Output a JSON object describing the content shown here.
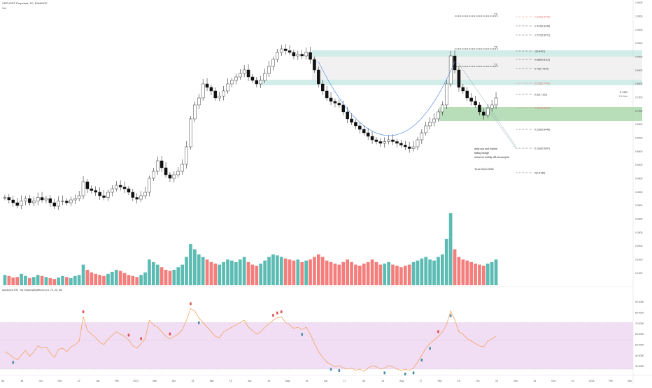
{
  "header": {
    "symbol_line": "XRPUSDT Perpetual, 1D, BINANCE",
    "sub_line": "Vol"
  },
  "rsi_panel": {
    "label": "Advanced RSI · By SeasonalityBitcoin (14, 70, 30, 55)"
  },
  "price_axis_labels": [
    "1.0000",
    "1.0500",
    "1.0000",
    "0.9500",
    "0.9000",
    "0.8500",
    "0.8000",
    "0.7500",
    "0.7000",
    "0.6500",
    "0.6000",
    "0.5500",
    "0.5000",
    "0.4500",
    "0.4000",
    "0.3500",
    "0.3000",
    "0.2500",
    "0.2000",
    "0.1500",
    "0.1000"
  ],
  "rsi_axis_labels": [
    "90.0000",
    "80.0000",
    "70.0000",
    "60.0000",
    "50.0000",
    "40.0000",
    "30.0000"
  ],
  "time_axis_labels": [
    "Ap",
    "Jul",
    "Oct",
    "Nov",
    "22",
    "Jan",
    "Feb",
    "2023",
    "Mar",
    "Apr",
    "15",
    "Mar",
    "15",
    "Apr",
    "16",
    "May",
    "16",
    "Jun",
    "17",
    "Jul",
    "18",
    "Aug",
    "17",
    "Sep",
    "18",
    "Oct",
    "16",
    "Nov",
    "16",
    "Dec",
    "16",
    "2024",
    "Feb",
    "Mar"
  ],
  "fib_levels": [
    {
      "label": "1.618(0.9978)",
      "color": "#e57373"
    },
    {
      "label": "1.414(0.9444)",
      "color": "#333333"
    },
    {
      "label": "1.272(0.9071)",
      "color": "#333333"
    },
    {
      "label": "1(0.8421)",
      "color": "#333333"
    },
    {
      "label": "0.886(0.8119)",
      "color": "#333333"
    },
    {
      "label": "0.79(0.7875)",
      "color": "#333333"
    },
    {
      "label": "0.618(0.7424)",
      "color": "#e57373"
    },
    {
      "label": "0.5(0.7102)",
      "color": "#333333"
    },
    {
      "label": "0.382(0.6822)",
      "color": "#e57373"
    },
    {
      "label": "0.236(0.6448)",
      "color": "#333333"
    },
    {
      "label": "0.118(0.5997)",
      "color": "#333333"
    },
    {
      "label": "0(0.5785)",
      "color": "#333333"
    }
  ],
  "targets": [
    "T3",
    "T2",
    "T1"
  ],
  "annotations": {
    "line1": "daily cup and handle",
    "line2": "falling wedge",
    "line3": "retest on weekly 0B bounceplot",
    "line4": "Yo-lo DCA LONG"
  },
  "price_tag": {
    "value": "0.7402",
    "sub": "17h 04m"
  },
  "colors": {
    "up": "#26a69a",
    "down": "#ef5350",
    "candle": "#111111",
    "band": "#b2dfdb",
    "zone": "#a5d6a7",
    "rsi_band": "#efd9f3",
    "rsi_line": "#f4a460"
  },
  "chart_data": {
    "type": "candlestick",
    "approximate": true,
    "price_range": [
      0.3,
      1.0
    ],
    "rsi_range": [
      30,
      90
    ],
    "rsi_levels": [
      70,
      55,
      30
    ],
    "price_closes": [
      0.455,
      0.448,
      0.44,
      0.432,
      0.445,
      0.452,
      0.44,
      0.445,
      0.455,
      0.448,
      0.452,
      0.44,
      0.43,
      0.445,
      0.445,
      0.44,
      0.448,
      0.452,
      0.46,
      0.5,
      0.48,
      0.475,
      0.47,
      0.46,
      0.455,
      0.47,
      0.48,
      0.49,
      0.485,
      0.48,
      0.47,
      0.455,
      0.45,
      0.46,
      0.47,
      0.51,
      0.53,
      0.56,
      0.54,
      0.52,
      0.51,
      0.52,
      0.53,
      0.55,
      0.6,
      0.68,
      0.72,
      0.74,
      0.78,
      0.77,
      0.76,
      0.74,
      0.745,
      0.76,
      0.78,
      0.79,
      0.8,
      0.81,
      0.82,
      0.8,
      0.79,
      0.78,
      0.79,
      0.81,
      0.83,
      0.85,
      0.87,
      0.88,
      0.875,
      0.87,
      0.86,
      0.865,
      0.86,
      0.87,
      0.85,
      0.82,
      0.78,
      0.76,
      0.74,
      0.73,
      0.725,
      0.72,
      0.7,
      0.68,
      0.67,
      0.66,
      0.65,
      0.64,
      0.63,
      0.62,
      0.615,
      0.61,
      0.615,
      0.62,
      0.615,
      0.61,
      0.605,
      0.6,
      0.595,
      0.6,
      0.62,
      0.64,
      0.66,
      0.67,
      0.68,
      0.7,
      0.72,
      0.78,
      0.86,
      0.82,
      0.77,
      0.76,
      0.74,
      0.73,
      0.72,
      0.7,
      0.69,
      0.71,
      0.72,
      0.74
    ],
    "volumes": [
      20,
      18,
      15,
      16,
      22,
      18,
      14,
      16,
      20,
      18,
      16,
      14,
      12,
      15,
      18,
      16,
      14,
      18,
      20,
      40,
      30,
      25,
      22,
      20,
      18,
      22,
      26,
      30,
      28,
      24,
      20,
      18,
      16,
      20,
      25,
      50,
      45,
      40,
      35,
      30,
      28,
      30,
      35,
      40,
      55,
      80,
      70,
      60,
      55,
      50,
      45,
      42,
      40,
      45,
      50,
      48,
      45,
      50,
      55,
      45,
      40,
      38,
      42,
      48,
      55,
      60,
      58,
      55,
      52,
      50,
      48,
      50,
      45,
      48,
      50,
      55,
      60,
      55,
      48,
      45,
      42,
      40,
      45,
      50,
      45,
      40,
      38,
      42,
      45,
      50,
      45,
      40,
      42,
      45,
      40,
      38,
      35,
      38,
      40,
      45,
      48,
      52,
      55,
      50,
      48,
      55,
      60,
      90,
      140,
      70,
      55,
      50,
      48,
      45,
      42,
      40,
      38,
      42,
      45,
      50
    ],
    "rsi_levels_series": [
      45,
      43,
      40,
      38,
      42,
      46,
      41,
      45,
      50,
      48,
      49,
      44,
      40,
      47,
      48,
      45,
      49,
      51,
      54,
      75,
      63,
      60,
      57,
      53,
      51,
      56,
      59,
      62,
      60,
      58,
      55,
      50,
      48,
      52,
      56,
      72,
      68,
      66,
      62,
      58,
      56,
      58,
      60,
      64,
      72,
      82,
      80,
      74,
      70,
      66,
      62,
      58,
      57,
      62,
      64,
      66,
      68,
      70,
      72,
      66,
      63,
      60,
      62,
      66,
      69,
      72,
      74,
      75,
      70,
      68,
      65,
      66,
      64,
      66,
      60,
      52,
      45,
      40,
      36,
      34,
      32,
      33,
      31,
      30,
      31,
      29,
      30,
      28,
      31,
      33,
      32,
      30,
      31,
      33,
      32,
      30,
      29,
      30,
      29,
      31,
      36,
      42,
      48,
      52,
      55,
      58,
      62,
      68,
      80,
      72,
      62,
      60,
      56,
      54,
      52,
      50,
      49,
      54,
      56,
      58
    ],
    "signals": [
      {
        "kind": "up",
        "index": 2
      },
      {
        "kind": "down",
        "index": 19
      },
      {
        "kind": "down",
        "index": 30
      },
      {
        "kind": "down",
        "index": 33
      },
      {
        "kind": "down",
        "index": 40
      },
      {
        "kind": "down",
        "index": 45
      },
      {
        "kind": "up",
        "index": 47
      },
      {
        "kind": "down",
        "index": 65
      },
      {
        "kind": "down",
        "index": 66
      },
      {
        "kind": "down",
        "index": 67
      },
      {
        "kind": "up",
        "index": 72
      },
      {
        "kind": "up",
        "index": 79
      },
      {
        "kind": "up",
        "index": 81
      },
      {
        "kind": "up",
        "index": 92
      },
      {
        "kind": "up",
        "index": 97
      },
      {
        "kind": "up",
        "index": 99
      },
      {
        "kind": "up",
        "index": 101
      },
      {
        "kind": "up",
        "index": 103
      },
      {
        "kind": "down",
        "index": 105
      },
      {
        "kind": "up",
        "index": 108
      }
    ]
  }
}
